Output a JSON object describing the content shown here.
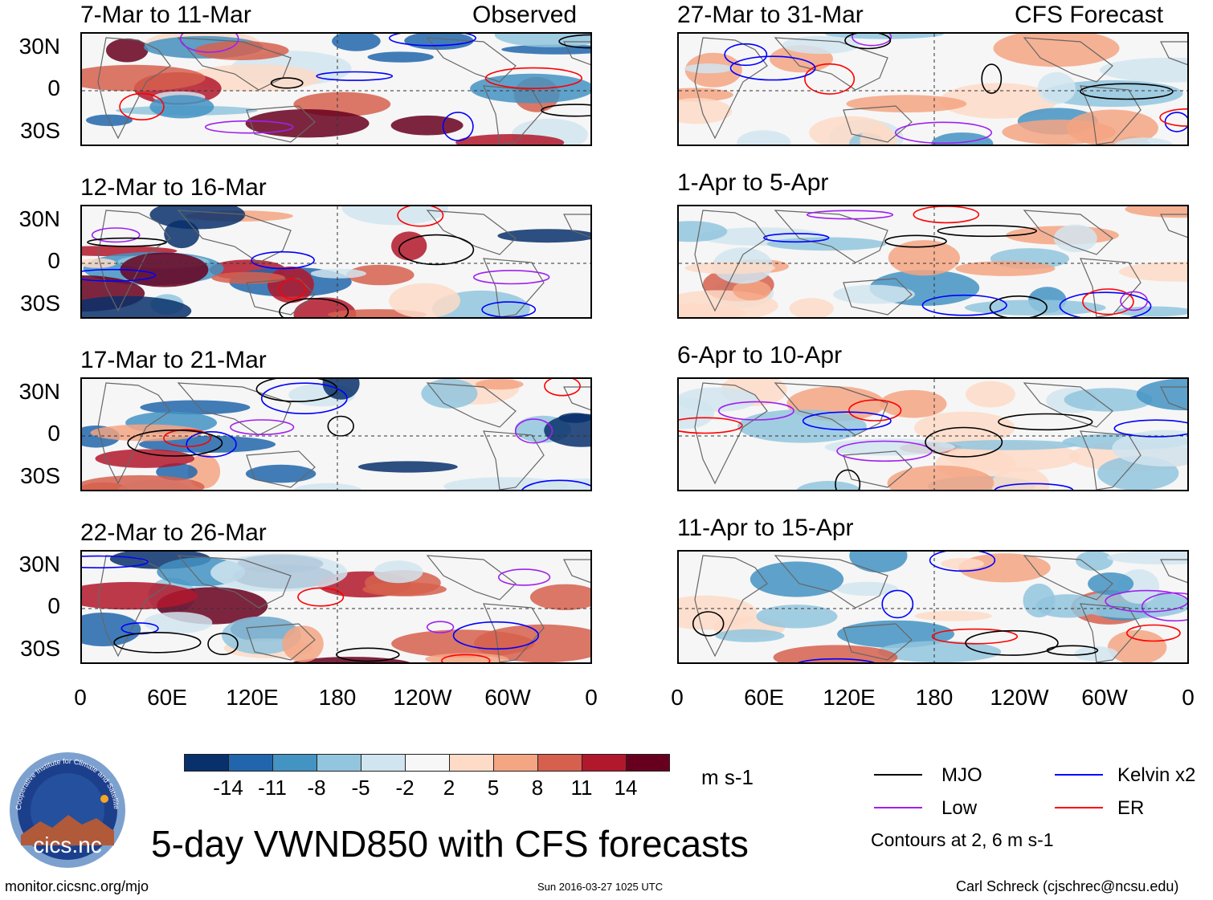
{
  "panels_left": [
    {
      "date": "7-Mar to 11-Mar",
      "label": "Observed"
    },
    {
      "date": "12-Mar to 16-Mar",
      "label": ""
    },
    {
      "date": "17-Mar to 21-Mar",
      "label": ""
    },
    {
      "date": "22-Mar to 26-Mar",
      "label": ""
    }
  ],
  "panels_right": [
    {
      "date": "27-Mar to 31-Mar",
      "label": "CFS Forecast"
    },
    {
      "date": "1-Apr to 5-Apr",
      "label": ""
    },
    {
      "date": "6-Apr to 10-Apr",
      "label": ""
    },
    {
      "date": "11-Apr to 15-Apr",
      "label": ""
    }
  ],
  "lat_labels": [
    "30N",
    "0",
    "30S"
  ],
  "lon_labels": [
    "0",
    "60E",
    "120E",
    "180",
    "120W",
    "60W",
    "0"
  ],
  "colorbar": {
    "colors": [
      "#08306b",
      "#2166ac",
      "#4393c3",
      "#92c5de",
      "#d1e5f0",
      "#f7f7f7",
      "#fddbc7",
      "#f4a582",
      "#d6604d",
      "#b2182b",
      "#67001f"
    ],
    "labels": [
      "-14",
      "-11",
      "-8",
      "-5",
      "-2",
      "2",
      "5",
      "8",
      "11",
      "14"
    ],
    "units": "m s-1"
  },
  "legend": {
    "mjo": {
      "label": "MJO",
      "color": "#000000"
    },
    "low": {
      "label": "Low",
      "color": "#a020f0"
    },
    "kelvin": {
      "label": "Kelvin x2",
      "color": "#0000ff"
    },
    "er": {
      "label": "ER",
      "color": "#ff0000"
    },
    "note": "Contours at 2, 6 m s-1"
  },
  "logo": {
    "text": "cics.nc",
    "ring_text": "Cooperative Institute for Climate and Satellites"
  },
  "title": "5-day VWND850 with CFS forecasts",
  "footer": {
    "url": "monitor.cicsnc.org/mjo",
    "timestamp": "Sun 2016-03-27 1025 UTC",
    "author": "Carl Schreck (cjschrec@ncsu.edu)"
  }
}
